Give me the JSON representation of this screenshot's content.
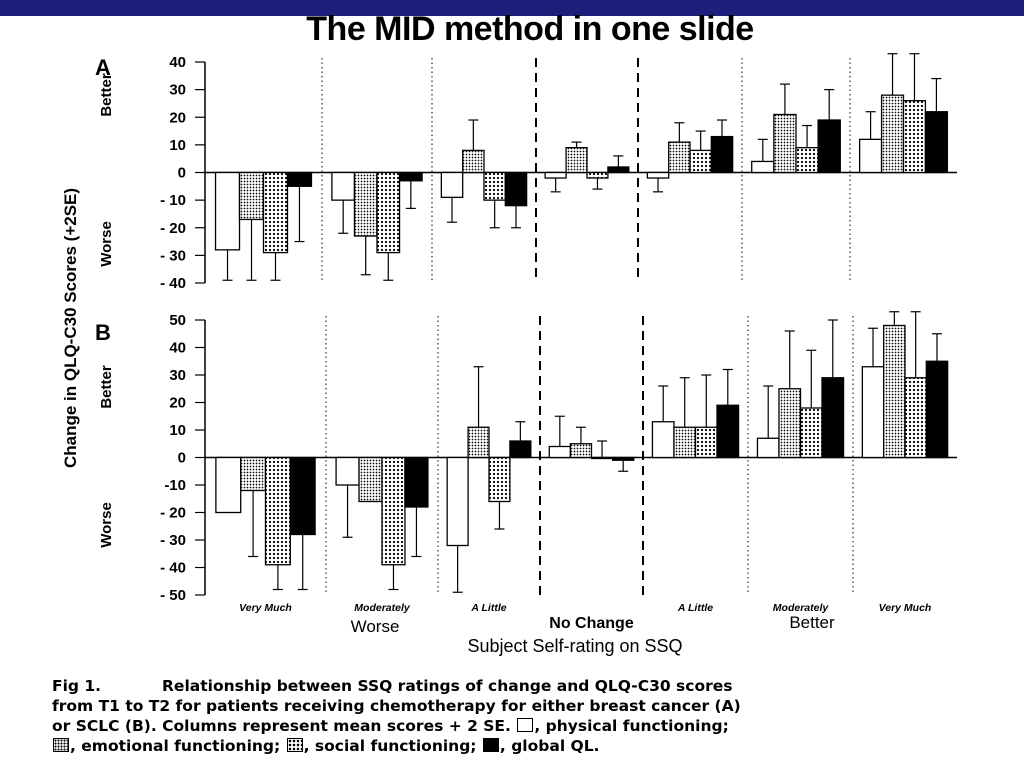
{
  "slide": {
    "title": "The MID method in one slide"
  },
  "chart_data": {
    "type": "bar",
    "ylabel": "Change in QLQ-C30 Scores (+2SE)",
    "xlabel": "Subject Self-rating on SSQ",
    "categories": [
      "Very Much",
      "Moderately",
      "A Little",
      "No Change",
      "A Little",
      "Moderately",
      "Very Much"
    ],
    "group_labels": [
      {
        "label": "Worse",
        "categories": [
          "Very Much",
          "Moderately",
          "A Little"
        ]
      },
      {
        "label": "No Change",
        "categories": [
          "No Change"
        ]
      },
      {
        "label": "Better",
        "categories": [
          "A Little",
          "Moderately",
          "Very Much"
        ]
      }
    ],
    "series_styles": [
      {
        "key": "physical",
        "name": "physical functioning",
        "fill": "white"
      },
      {
        "key": "emotional",
        "name": "emotional functioning",
        "fill": "fine-dots"
      },
      {
        "key": "social",
        "name": "social functioning",
        "fill": "coarse-dots"
      },
      {
        "key": "global",
        "name": "global QL",
        "fill": "black"
      }
    ],
    "panels": [
      {
        "label": "A",
        "ylim": [
          -40,
          40
        ],
        "yticks": [
          "40",
          "30",
          "20",
          "10",
          "0",
          "- 10",
          "- 20",
          "- 30",
          "- 40"
        ],
        "ytick_values": [
          40,
          30,
          20,
          10,
          0,
          -10,
          -20,
          -30,
          -40
        ],
        "region_labels": {
          "better": "Better",
          "worse": "Worse"
        },
        "series": [
          {
            "key": "physical",
            "values": [
              -28,
              -10,
              -9,
              -2,
              -2,
              4,
              12
            ],
            "errors": [
              11,
              12,
              9,
              5,
              5,
              8,
              10
            ]
          },
          {
            "key": "emotional",
            "values": [
              -17,
              -23,
              8,
              9,
              11,
              21,
              28
            ],
            "errors": [
              22,
              14,
              11,
              2,
              7,
              11,
              15
            ]
          },
          {
            "key": "social",
            "values": [
              -29,
              -29,
              -10,
              -2,
              8,
              9,
              26
            ],
            "errors": [
              10,
              10,
              10,
              4,
              7,
              8,
              17
            ]
          },
          {
            "key": "global",
            "values": [
              -5,
              -3,
              -12,
              2,
              13,
              19,
              22
            ],
            "errors": [
              20,
              10,
              8,
              4,
              6,
              11,
              12
            ]
          }
        ]
      },
      {
        "label": "B",
        "ylim": [
          -50,
          50
        ],
        "yticks": [
          "50",
          "40",
          "30",
          "20",
          "10",
          "0",
          "-10",
          "- 20",
          "- 30",
          "- 40",
          "- 50"
        ],
        "ytick_values": [
          50,
          40,
          30,
          20,
          10,
          0,
          -10,
          -20,
          -30,
          -40,
          -50
        ],
        "region_labels": {
          "better": "Better",
          "worse": "Worse"
        },
        "series": [
          {
            "key": "physical",
            "values": [
              -20,
              -10,
              -32,
              4,
              13,
              7,
              33
            ],
            "errors": [
              0,
              19,
              17,
              11,
              13,
              19,
              14
            ]
          },
          {
            "key": "emotional",
            "values": [
              -12,
              -16,
              11,
              5,
              11,
              25,
              48
            ],
            "errors": [
              24,
              0,
              22,
              6,
              18,
              21,
              5
            ]
          },
          {
            "key": "social",
            "values": [
              -39,
              -39,
              -16,
              0,
              11,
              18,
              29
            ],
            "errors": [
              9,
              9,
              10,
              6,
              19,
              21,
              24
            ]
          },
          {
            "key": "global",
            "values": [
              -28,
              -18,
              6,
              -1,
              19,
              29,
              35
            ],
            "errors": [
              20,
              18,
              7,
              4,
              13,
              21,
              10
            ]
          }
        ]
      }
    ]
  },
  "caption": {
    "fig_label": "Fig 1.",
    "line1": "Relationship between SSQ ratings of change and QLQ-C30 scores",
    "line2": "from T1 to T2 for patients receiving chemotherapy for either breast cancer (A)",
    "line3a": "or SCLC (B). Columns represent mean scores + 2 SE.",
    "line3b": ", physical functioning;",
    "line4a": ", emotional functioning;",
    "line4b": ", social functioning;",
    "line4c": ", global QL."
  }
}
